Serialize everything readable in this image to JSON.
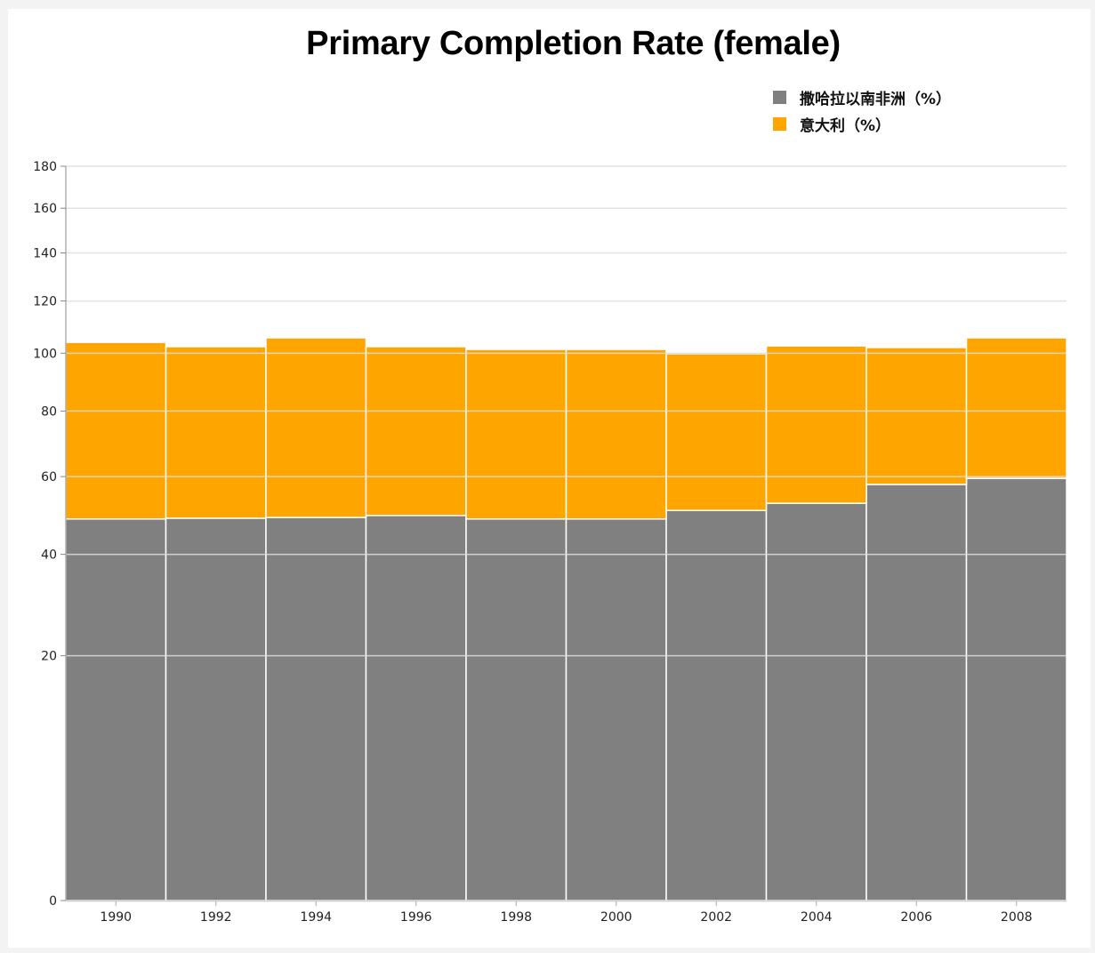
{
  "chart_data": {
    "type": "bar",
    "stacked": true,
    "title": "Primary Completion Rate (female)",
    "xlabel": "",
    "ylabel": "",
    "y_scale": "sqrt",
    "ylim": [
      0,
      180
    ],
    "yticks": [
      0,
      20,
      40,
      60,
      80,
      100,
      120,
      140,
      160,
      180
    ],
    "grid": true,
    "legend_position": "top-right",
    "categories": [
      "1990",
      "1992",
      "1994",
      "1996",
      "1998",
      "2000",
      "2002",
      "2004",
      "2006",
      "2008"
    ],
    "series": [
      {
        "name": "撒哈拉以南非洲（%）",
        "color": "#808080",
        "values": [
          48.6,
          48.8,
          49.0,
          49.5,
          48.6,
          48.6,
          50.8,
          52.7,
          57.8,
          59.5
        ]
      },
      {
        "name": "意大利（%）",
        "color": "#ffa500",
        "values": [
          55.4,
          53.6,
          56.7,
          52.9,
          52.8,
          52.8,
          49.0,
          50.0,
          44.3,
          46.2
        ]
      }
    ]
  }
}
